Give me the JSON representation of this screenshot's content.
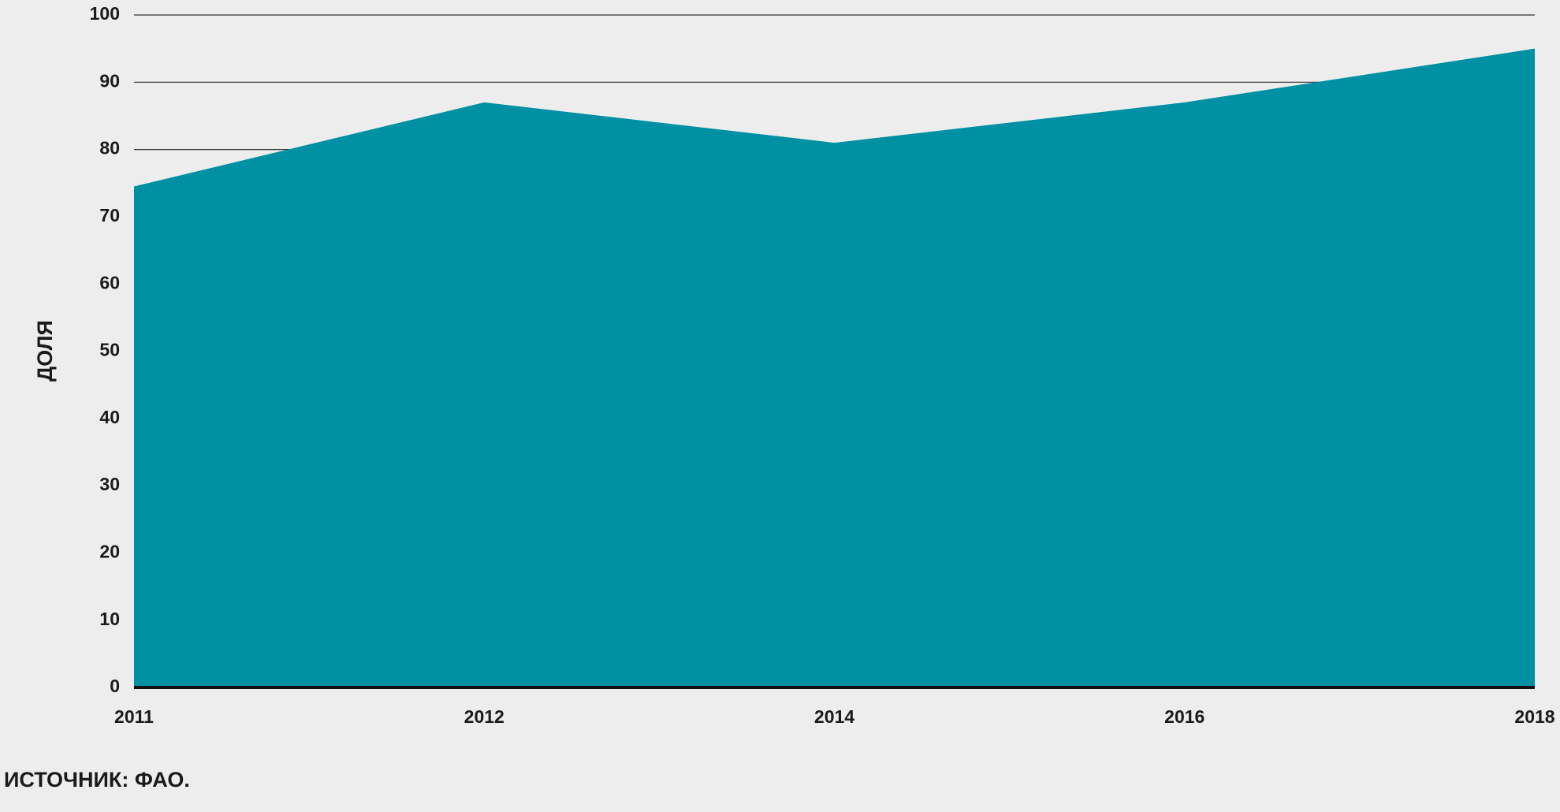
{
  "chart_data": {
    "type": "area",
    "y_label": "ДОЛЯ",
    "source": "ИСТОЧНИК: ФАО.",
    "categories": [
      "2011",
      "2012",
      "2014",
      "2016",
      "2018"
    ],
    "values": [
      74.5,
      87,
      81,
      87,
      95
    ],
    "color": "#0090a4",
    "ylim": [
      0,
      100
    ],
    "yticks": [
      0,
      10,
      20,
      30,
      40,
      50,
      60,
      70,
      80,
      90,
      100
    ],
    "grid": true
  }
}
